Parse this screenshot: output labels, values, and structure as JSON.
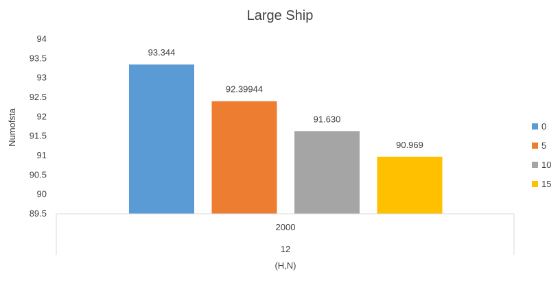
{
  "chart_data": {
    "type": "bar",
    "title": "Large Ship",
    "ylabel": "Numofsta",
    "xlabel": "(H,N)",
    "category_levels": [
      "2000",
      "12"
    ],
    "ylim": [
      89.5,
      94
    ],
    "yticks": [
      "89.5",
      "90",
      "90.5",
      "91",
      "91.5",
      "92",
      "92.5",
      "93",
      "93.5",
      "94"
    ],
    "grid": false,
    "legend_position": "right",
    "series": [
      {
        "name": "0",
        "value": 93.344,
        "label": "93.344",
        "color": "#5B9BD5"
      },
      {
        "name": "5",
        "value": 92.39944,
        "label": "92.39944",
        "color": "#ED7D31"
      },
      {
        "name": "10",
        "value": 91.63,
        "label": "91.630",
        "color": "#A5A5A5"
      },
      {
        "name": "15",
        "value": 90.969,
        "label": "90.969",
        "color": "#FFC000"
      }
    ]
  }
}
